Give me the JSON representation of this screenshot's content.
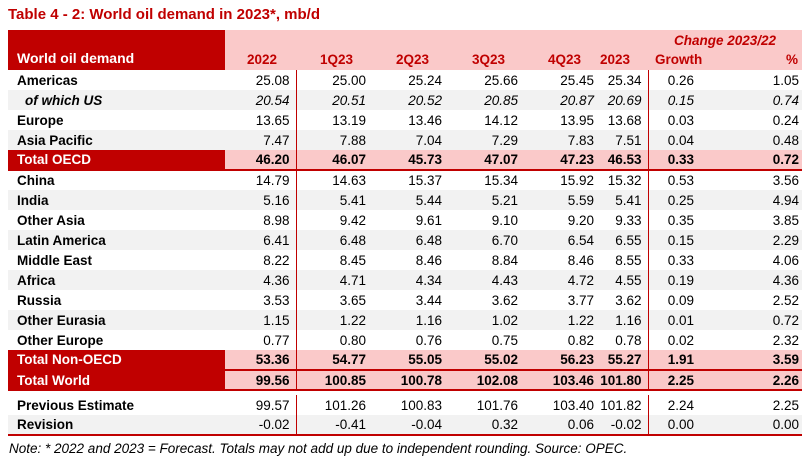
{
  "title": "Table 4 - 2: World oil demand in 2023*, mb/d",
  "colors": {
    "dark_red": "#C00000",
    "pink": "#FAC9C9",
    "alt_row_gray": "#F2F2F2",
    "text": "#000000"
  },
  "table": {
    "corner_header": "World oil demand",
    "change_group_header": "Change 2023/22",
    "columns": [
      "2022",
      "1Q23",
      "2Q23",
      "3Q23",
      "4Q23",
      "2023"
    ],
    "growth_header": "Growth",
    "percent_header": "%",
    "rows": [
      {
        "label": "Americas",
        "kind": "region",
        "values": [
          "25.08",
          "25.00",
          "25.24",
          "25.66",
          "25.45",
          "25.34",
          "0.26",
          "1.05"
        ]
      },
      {
        "label": "of which US",
        "kind": "us",
        "values": [
          "20.54",
          "20.51",
          "20.52",
          "20.85",
          "20.87",
          "20.69",
          "0.15",
          "0.74"
        ]
      },
      {
        "label": "Europe",
        "kind": "region",
        "values": [
          "13.65",
          "13.19",
          "13.46",
          "14.12",
          "13.95",
          "13.68",
          "0.03",
          "0.24"
        ]
      },
      {
        "label": "Asia Pacific",
        "kind": "region-alt",
        "values": [
          "7.47",
          "7.88",
          "7.04",
          "7.29",
          "7.83",
          "7.51",
          "0.04",
          "0.48"
        ]
      },
      {
        "label": "Total OECD",
        "kind": "total",
        "values": [
          "46.20",
          "46.07",
          "45.73",
          "47.07",
          "47.23",
          "46.53",
          "0.33",
          "0.72"
        ]
      },
      {
        "label": "China",
        "kind": "region",
        "values": [
          "14.79",
          "14.63",
          "15.37",
          "15.34",
          "15.92",
          "15.32",
          "0.53",
          "3.56"
        ]
      },
      {
        "label": "India",
        "kind": "region-alt",
        "values": [
          "5.16",
          "5.41",
          "5.44",
          "5.21",
          "5.59",
          "5.41",
          "0.25",
          "4.94"
        ]
      },
      {
        "label": "Other Asia",
        "kind": "region",
        "values": [
          "8.98",
          "9.42",
          "9.61",
          "9.10",
          "9.20",
          "9.33",
          "0.35",
          "3.85"
        ]
      },
      {
        "label": "Latin America",
        "kind": "region-alt",
        "values": [
          "6.41",
          "6.48",
          "6.48",
          "6.70",
          "6.54",
          "6.55",
          "0.15",
          "2.29"
        ]
      },
      {
        "label": "Middle East",
        "kind": "region",
        "values": [
          "8.22",
          "8.45",
          "8.46",
          "8.84",
          "8.46",
          "8.55",
          "0.33",
          "4.06"
        ]
      },
      {
        "label": "Africa",
        "kind": "region-alt",
        "values": [
          "4.36",
          "4.71",
          "4.34",
          "4.43",
          "4.72",
          "4.55",
          "0.19",
          "4.36"
        ]
      },
      {
        "label": "Russia",
        "kind": "region",
        "values": [
          "3.53",
          "3.65",
          "3.44",
          "3.62",
          "3.77",
          "3.62",
          "0.09",
          "2.52"
        ]
      },
      {
        "label": "Other Eurasia",
        "kind": "region-alt",
        "values": [
          "1.15",
          "1.22",
          "1.16",
          "1.02",
          "1.22",
          "1.16",
          "0.01",
          "0.72"
        ]
      },
      {
        "label": "Other Europe",
        "kind": "region",
        "values": [
          "0.77",
          "0.80",
          "0.76",
          "0.75",
          "0.82",
          "0.78",
          "0.02",
          "2.32"
        ]
      },
      {
        "label": "Total Non-OECD",
        "kind": "total",
        "values": [
          "53.36",
          "54.77",
          "55.05",
          "55.02",
          "56.23",
          "55.27",
          "1.91",
          "3.59"
        ]
      },
      {
        "label": "Total World",
        "kind": "total-world",
        "values": [
          "99.56",
          "100.85",
          "100.78",
          "102.08",
          "103.46",
          "101.80",
          "2.25",
          "2.26"
        ]
      },
      {
        "kind": "spacer"
      },
      {
        "label": "Previous Estimate",
        "kind": "estimate",
        "values": [
          "99.57",
          "101.26",
          "100.83",
          "101.76",
          "103.40",
          "101.82",
          "2.24",
          "2.25"
        ]
      },
      {
        "label": "Revision",
        "kind": "revision",
        "values": [
          "-0.02",
          "-0.41",
          "-0.04",
          "0.32",
          "0.06",
          "-0.02",
          "0.00",
          "0.00"
        ]
      }
    ]
  },
  "note": "Note: * 2022 and 2023 = Forecast. Totals may not add up due to independent rounding. Source: OPEC."
}
